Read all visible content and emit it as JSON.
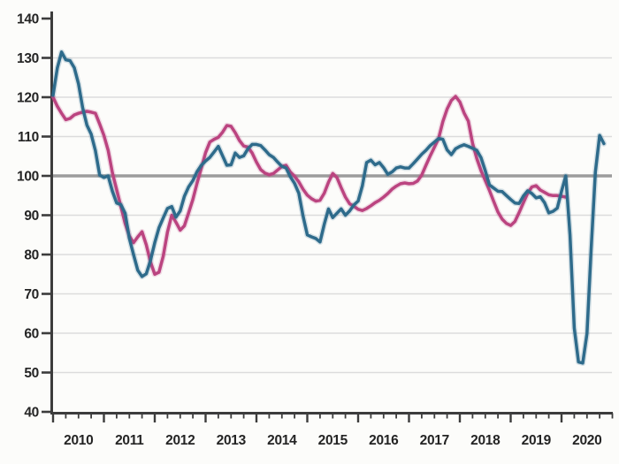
{
  "chart_data": {
    "type": "line",
    "title": "",
    "y_axis": {
      "min": 40,
      "max": 140,
      "tick_step": 10,
      "tick_labels": [
        "140",
        "130",
        "120",
        "110",
        "100",
        "90",
        "80",
        "70",
        "60",
        "50",
        "40"
      ]
    },
    "x_axis": {
      "year_labels": [
        "2010",
        "2011",
        "2012",
        "2013",
        "2014",
        "2015",
        "2016",
        "2017",
        "2018",
        "2019",
        "2020"
      ],
      "minor_ticks_per_year": 4
    },
    "reference_line": {
      "value": 100
    },
    "grid": "horizontal",
    "legend": "none",
    "series": [
      {
        "name": "indicator-teal",
        "color": "#2e6b8b",
        "frequency": "monthly",
        "start": "2010-01",
        "values": [
          120.5,
          127.4,
          131.5,
          129.5,
          129.3,
          127.5,
          123.4,
          117.3,
          112.9,
          110.6,
          106.4,
          100.2,
          99.6,
          100,
          96.1,
          93.1,
          92.7,
          90.5,
          84.1,
          80,
          76,
          74.4,
          75.1,
          78.5,
          83,
          86.8,
          89.3,
          91.7,
          92.2,
          89.5,
          91.1,
          94.8,
          97.2,
          98.8,
          101.1,
          102.7,
          103.8,
          104.7,
          106.1,
          107.5,
          105.1,
          102.7,
          102.8,
          105.8,
          104.7,
          105.1,
          106.9,
          108,
          108,
          107.7,
          106.6,
          105.4,
          104.7,
          103.5,
          102.4,
          102,
          99.8,
          98.1,
          95.6,
          89.8,
          85,
          84.5,
          84.1,
          83.2,
          87.7,
          91.6,
          89.4,
          90.5,
          91.6,
          90,
          91.1,
          92.6,
          93.6,
          97.5,
          103.4,
          104,
          102.8,
          103.4,
          102.1,
          100.4,
          101,
          102,
          102.3,
          102,
          102,
          103.1,
          104.3,
          105.5,
          106.5,
          107.7,
          108.6,
          109.5,
          109.3,
          106.6,
          105.4,
          106.9,
          107.5,
          107.9,
          107.5,
          107,
          106.5,
          104.6,
          101.3,
          97.7,
          96.9,
          96.1,
          96,
          95,
          94,
          93.1,
          93,
          94.9,
          96.2,
          95.5,
          94.4,
          94.7,
          93.2,
          90.6,
          91,
          91.8,
          96.1,
          100,
          85,
          61.3,
          52.7,
          52.4,
          59.9,
          81.4,
          101,
          110.3,
          108.2
        ]
      },
      {
        "name": "indicator-magenta",
        "color": "#bb4480",
        "frequency": "monthly",
        "start": "2010-01",
        "values": [
          120,
          117.7,
          115.9,
          114.3,
          114.6,
          115.5,
          115.9,
          116.2,
          116.4,
          116.2,
          115.9,
          113.2,
          110.3,
          106.5,
          100.8,
          96.5,
          92.2,
          87.9,
          84.7,
          83,
          84.5,
          85.8,
          82.5,
          78.1,
          75,
          75.5,
          79.6,
          85.7,
          90,
          88.2,
          86.2,
          87.3,
          90.6,
          94,
          98.2,
          102,
          105.9,
          108.6,
          109.3,
          109.8,
          111.1,
          112.8,
          112.6,
          111,
          109,
          107.6,
          107.3,
          105.8,
          103.5,
          101.6,
          100.7,
          100.3,
          100.6,
          101.5,
          102.4,
          102.7,
          101,
          99.9,
          98.5,
          96.6,
          95.1,
          94.2,
          93.6,
          93.8,
          95.6,
          98.4,
          100.6,
          99.6,
          97,
          94.6,
          92.9,
          92.3,
          91.5,
          91.2,
          91.7,
          92.4,
          93.2,
          93.8,
          94.6,
          95.5,
          96.6,
          97.4,
          98,
          98.2,
          98,
          98.1,
          98.7,
          100.2,
          102.7,
          105.1,
          107.3,
          109.5,
          113.8,
          117,
          119.2,
          120.2,
          118.8,
          116,
          113.9,
          108.3,
          104.4,
          101.3,
          98.8,
          96.3,
          93.5,
          90.8,
          89,
          87.9,
          87.4,
          88.4,
          90.7,
          93.2,
          95.6,
          97.2,
          97.5,
          96.4,
          95.8,
          95.2,
          95,
          95,
          94.8,
          94.6
        ]
      }
    ],
    "colors": {
      "axis": "#3c3c3c",
      "grid": "#dcdcdc",
      "reference_line": "#9c9c9c",
      "text": "#242424",
      "background": "#fcfcfa"
    }
  }
}
